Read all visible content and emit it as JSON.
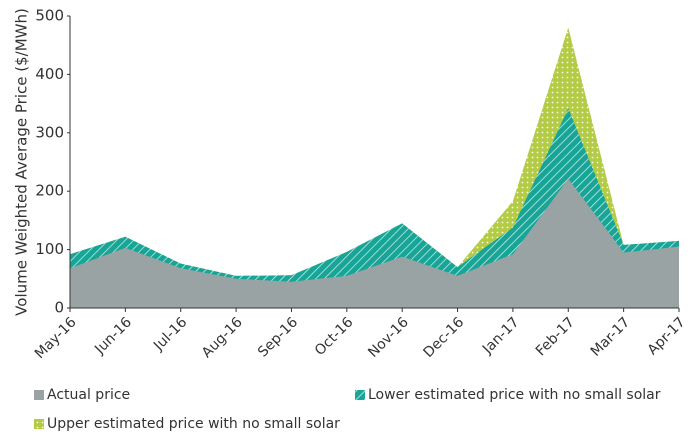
{
  "chart_data": {
    "type": "area",
    "y_label": "Volume Weighted Average Price ($/MWh)",
    "categories": [
      "May-16",
      "Jun-16",
      "Jul-16",
      "Aug-16",
      "Sep-16",
      "Oct-16",
      "Nov-16",
      "Dec-16",
      "Jan-17",
      "Feb-17",
      "Mar-17",
      "Apr-17"
    ],
    "series": [
      {
        "name": "Actual price",
        "color": "#9aa3a3",
        "values": [
          68,
          103,
          68,
          50,
          45,
          55,
          88,
          55,
          92,
          221,
          95,
          105
        ]
      },
      {
        "name": "Lower estimated price with no small solar",
        "color": "#17a597",
        "values": [
          92,
          122,
          76,
          55,
          56,
          96,
          145,
          70,
          138,
          342,
          108,
          115
        ]
      },
      {
        "name": "Upper estimated price with no small solar",
        "color": "#b3cb45",
        "values": [
          92,
          122,
          76,
          55,
          56,
          96,
          145,
          70,
          183,
          480,
          108,
          115
        ]
      }
    ],
    "ylim": [
      0,
      500
    ],
    "yticks": [
      0,
      100,
      200,
      300,
      400,
      500
    ],
    "grid": false,
    "legend": "bottom"
  }
}
